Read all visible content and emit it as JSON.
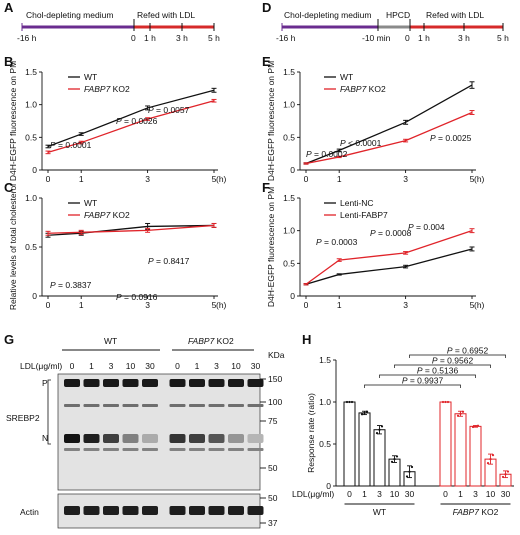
{
  "colors": {
    "wt": "#111111",
    "ko": "#e0242a",
    "purple": "#6a2c8f",
    "refed": "#d62a2a",
    "hpcd": "#8a8a8a"
  },
  "timelines": [
    {
      "panel": "A",
      "medium": "Chol-depleting medium",
      "refed": "Refed with LDL",
      "ticks": [
        "-16 h",
        "0",
        "1 h",
        "3 h",
        "5 h"
      ]
    },
    {
      "panel": "D",
      "medium": "Chol-depleting medium",
      "hpcd": "HPCD",
      "refed": "Refed with LDL",
      "ticks": [
        "-16 h",
        "-10 min",
        "0",
        "1 h",
        "3 h",
        "5 h"
      ]
    }
  ],
  "chart_data": [
    {
      "panel": "B",
      "type": "line",
      "ylabel": "D4H-EGFP fluorescence on PM",
      "xunit": "(h)",
      "x": [
        0,
        1,
        3,
        5
      ],
      "xticks": [
        "0",
        "1",
        "3",
        "5"
      ],
      "ylim": [
        0,
        1.5
      ],
      "yticks": [
        "0",
        "0.5",
        "1.0",
        "1.5"
      ],
      "series": [
        {
          "name": "WT",
          "values": [
            0.36,
            0.55,
            0.95,
            1.22
          ],
          "errors": [
            0.02,
            0.02,
            0.03,
            0.03
          ]
        },
        {
          "name_italic": "FABP7",
          "name_rest": " KO2",
          "values": [
            0.27,
            0.42,
            0.78,
            1.06
          ],
          "errors": [
            0.02,
            0.02,
            0.02,
            0.02
          ]
        }
      ],
      "pvalues": [
        "= 0.0001",
        "= 0.0026",
        "= 0.0057"
      ],
      "p_prefix": [
        "P <",
        "P",
        "P"
      ]
    },
    {
      "panel": "C",
      "type": "line",
      "ylabel": "Relative levels of total cholesterol",
      "xunit": "(h)",
      "x": [
        0,
        1,
        3,
        5
      ],
      "xticks": [
        "0",
        "1",
        "3",
        "5"
      ],
      "ylim": [
        0,
        1.0
      ],
      "yticks": [
        "0",
        "0.5",
        "1.0"
      ],
      "series": [
        {
          "name": "WT",
          "values": [
            0.62,
            0.64,
            0.71,
            0.72
          ],
          "errors": [
            0.02,
            0.02,
            0.03,
            0.02
          ]
        },
        {
          "name_italic": "FABP7",
          "name_rest": " KO2",
          "values": [
            0.64,
            0.65,
            0.67,
            0.72
          ],
          "errors": [
            0.02,
            0.02,
            0.02,
            0.02
          ]
        }
      ],
      "pvalues": [
        "= 0.3837",
        "= 0.0916",
        "= 0.8417"
      ]
    },
    {
      "panel": "E",
      "type": "line",
      "ylabel": "D4H-EGFP fluorescence on PM",
      "xunit": "(h)",
      "x": [
        0,
        1,
        3,
        5
      ],
      "xticks": [
        "0",
        "1",
        "3",
        "5"
      ],
      "ylim": [
        0,
        1.5
      ],
      "yticks": [
        "0",
        "0.5",
        "1.0",
        "1.5"
      ],
      "series": [
        {
          "name": "WT",
          "values": [
            0.1,
            0.3,
            0.73,
            1.3
          ],
          "errors": [
            0.01,
            0.02,
            0.03,
            0.05
          ]
        },
        {
          "name_italic": "FABP7",
          "name_rest": " KO2",
          "values": [
            0.1,
            0.2,
            0.45,
            0.88
          ],
          "errors": [
            0.01,
            0.01,
            0.02,
            0.03
          ]
        }
      ],
      "pvalues": [
        "= 0.0002",
        "< 0.0001",
        "= 0.0025"
      ]
    },
    {
      "panel": "F",
      "type": "line",
      "ylabel": "D4H-EGFP fluorescence on PM",
      "xunit": "(h)",
      "x": [
        0,
        1,
        3,
        5
      ],
      "xticks": [
        "0",
        "1",
        "3",
        "5"
      ],
      "ylim": [
        0,
        1.5
      ],
      "yticks": [
        "0",
        "0.5",
        "1.0",
        "1.5"
      ],
      "series": [
        {
          "name": "Lenti-NC",
          "values": [
            0.18,
            0.33,
            0.45,
            0.72
          ],
          "errors": [
            0.01,
            0.01,
            0.02,
            0.03
          ]
        },
        {
          "name": "Lenti-FABP7",
          "values": [
            0.18,
            0.55,
            0.66,
            1.0
          ],
          "errors": [
            0.01,
            0.02,
            0.02,
            0.03
          ]
        }
      ],
      "pvalues": [
        "= 0.0003",
        "= 0.0008",
        "= 0.004"
      ]
    },
    {
      "panel": "H",
      "type": "bar",
      "ylabel": "Response rate (ratio)",
      "categories_label": "LDL(μg/ml)",
      "categories": [
        "0",
        "1",
        "3",
        "10",
        "30"
      ],
      "ylim": [
        0,
        1.5
      ],
      "yticks": [
        "0",
        "0.5",
        "1.0",
        "1.5"
      ],
      "series": [
        {
          "name": "WT",
          "values": [
            1.0,
            0.87,
            0.67,
            0.32,
            0.17
          ],
          "errors": [
            0.0,
            0.02,
            0.05,
            0.04,
            0.07
          ]
        },
        {
          "name_italic": "FABP7",
          "name_rest": " KO2",
          "values": [
            1.0,
            0.86,
            0.71,
            0.32,
            0.14
          ],
          "errors": [
            0.0,
            0.03,
            0.01,
            0.06,
            0.04
          ]
        }
      ],
      "comparisons": [
        "P = 0.6952",
        "P = 0.9562",
        "P = 0.5136",
        "P = 0.9937"
      ]
    }
  ],
  "blot": {
    "panel": "G",
    "ldl_label": "LDL(μg/ml)",
    "doses": [
      "0",
      "1",
      "3",
      "10",
      "30",
      "0",
      "1",
      "3",
      "10",
      "30"
    ],
    "group_wt": "WT",
    "group_ko_italic": "FABP7",
    "group_ko_rest": " KO2",
    "kda": "KDa",
    "markers_top": [
      "150",
      "100",
      "75",
      "50"
    ],
    "markers_bottom": [
      "50",
      "37"
    ],
    "protein": "SREBP2",
    "p_label": "P",
    "n_label": "N",
    "actin": "Actin",
    "n_band_intensity": [
      1.0,
      0.95,
      0.8,
      0.5,
      0.3,
      0.85,
      0.8,
      0.7,
      0.4,
      0.25
    ]
  },
  "panel_labels": {
    "A": "A",
    "B": "B",
    "C": "C",
    "D": "D",
    "E": "E",
    "F": "F",
    "G": "G",
    "H": "H"
  }
}
